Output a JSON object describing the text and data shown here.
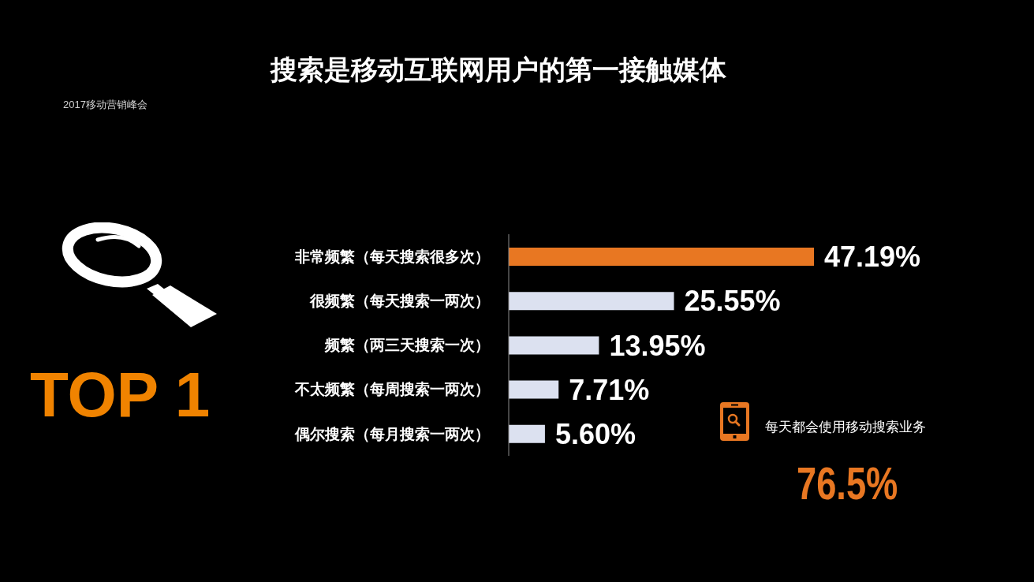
{
  "chart_data": {
    "type": "bar",
    "orientation": "horizontal",
    "title": "搜索是移动互联网用户的第一接触媒体",
    "categories": [
      "非常频繁（每天搜索很多次）",
      "很频繁（每天搜索一两次）",
      "频繁（两三天搜索一次）",
      "不太频繁（每周搜索一两次）",
      "偶尔搜索（每月搜索一两次）"
    ],
    "values": [
      47.19,
      25.55,
      13.95,
      7.71,
      5.6
    ],
    "colors": [
      "#e87722",
      "#dce1f0",
      "#dce1f0",
      "#dce1f0",
      "#dce1f0"
    ],
    "value_labels": [
      "47.19%",
      "25.55%",
      "13.95%",
      "7.71%",
      "5.60%"
    ],
    "annotations": [
      "2017移动营销峰会",
      "TOP 1",
      "每天都会使用移动搜索业务",
      "76.5%"
    ]
  }
}
